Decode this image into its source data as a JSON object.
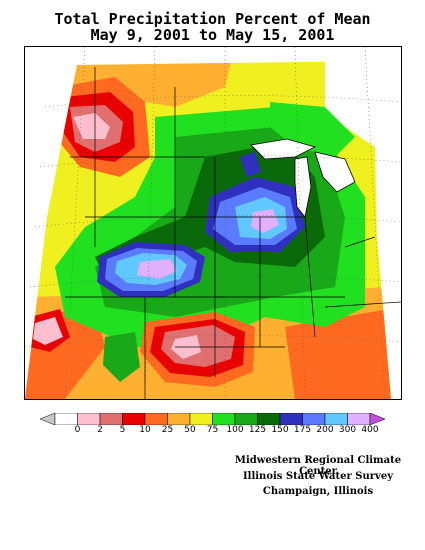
{
  "title_line1": "Total Precipitation Percent of Mean",
  "title_line2": "May 9, 2001 to May 15, 2001",
  "legend": {
    "bins": [
      {
        "label": "0",
        "color": "#ffffff"
      },
      {
        "label": "2",
        "color": "#ffbfcf"
      },
      {
        "label": "5",
        "color": "#e07070"
      },
      {
        "label": "10",
        "color": "#e80000"
      },
      {
        "label": "25",
        "color": "#ff6a20"
      },
      {
        "label": "50",
        "color": "#ffb030"
      },
      {
        "label": "75",
        "color": "#f0f020"
      },
      {
        "label": "100",
        "color": "#20e020"
      },
      {
        "label": "125",
        "color": "#18a818"
      },
      {
        "label": "150",
        "color": "#0a6a0a"
      },
      {
        "label": "175",
        "color": "#3030c0"
      },
      {
        "label": "200",
        "color": "#5a7aff"
      },
      {
        "label": "300",
        "color": "#60c8ff"
      },
      {
        "label": "400",
        "color": "#e0b0ff"
      }
    ],
    "overflow_color": "#c050e0"
  },
  "credits": {
    "line1": "Midwestern Regional Climate Center",
    "line2": "Illinois State Water Survey",
    "line3": "Champaign, Illinois"
  }
}
